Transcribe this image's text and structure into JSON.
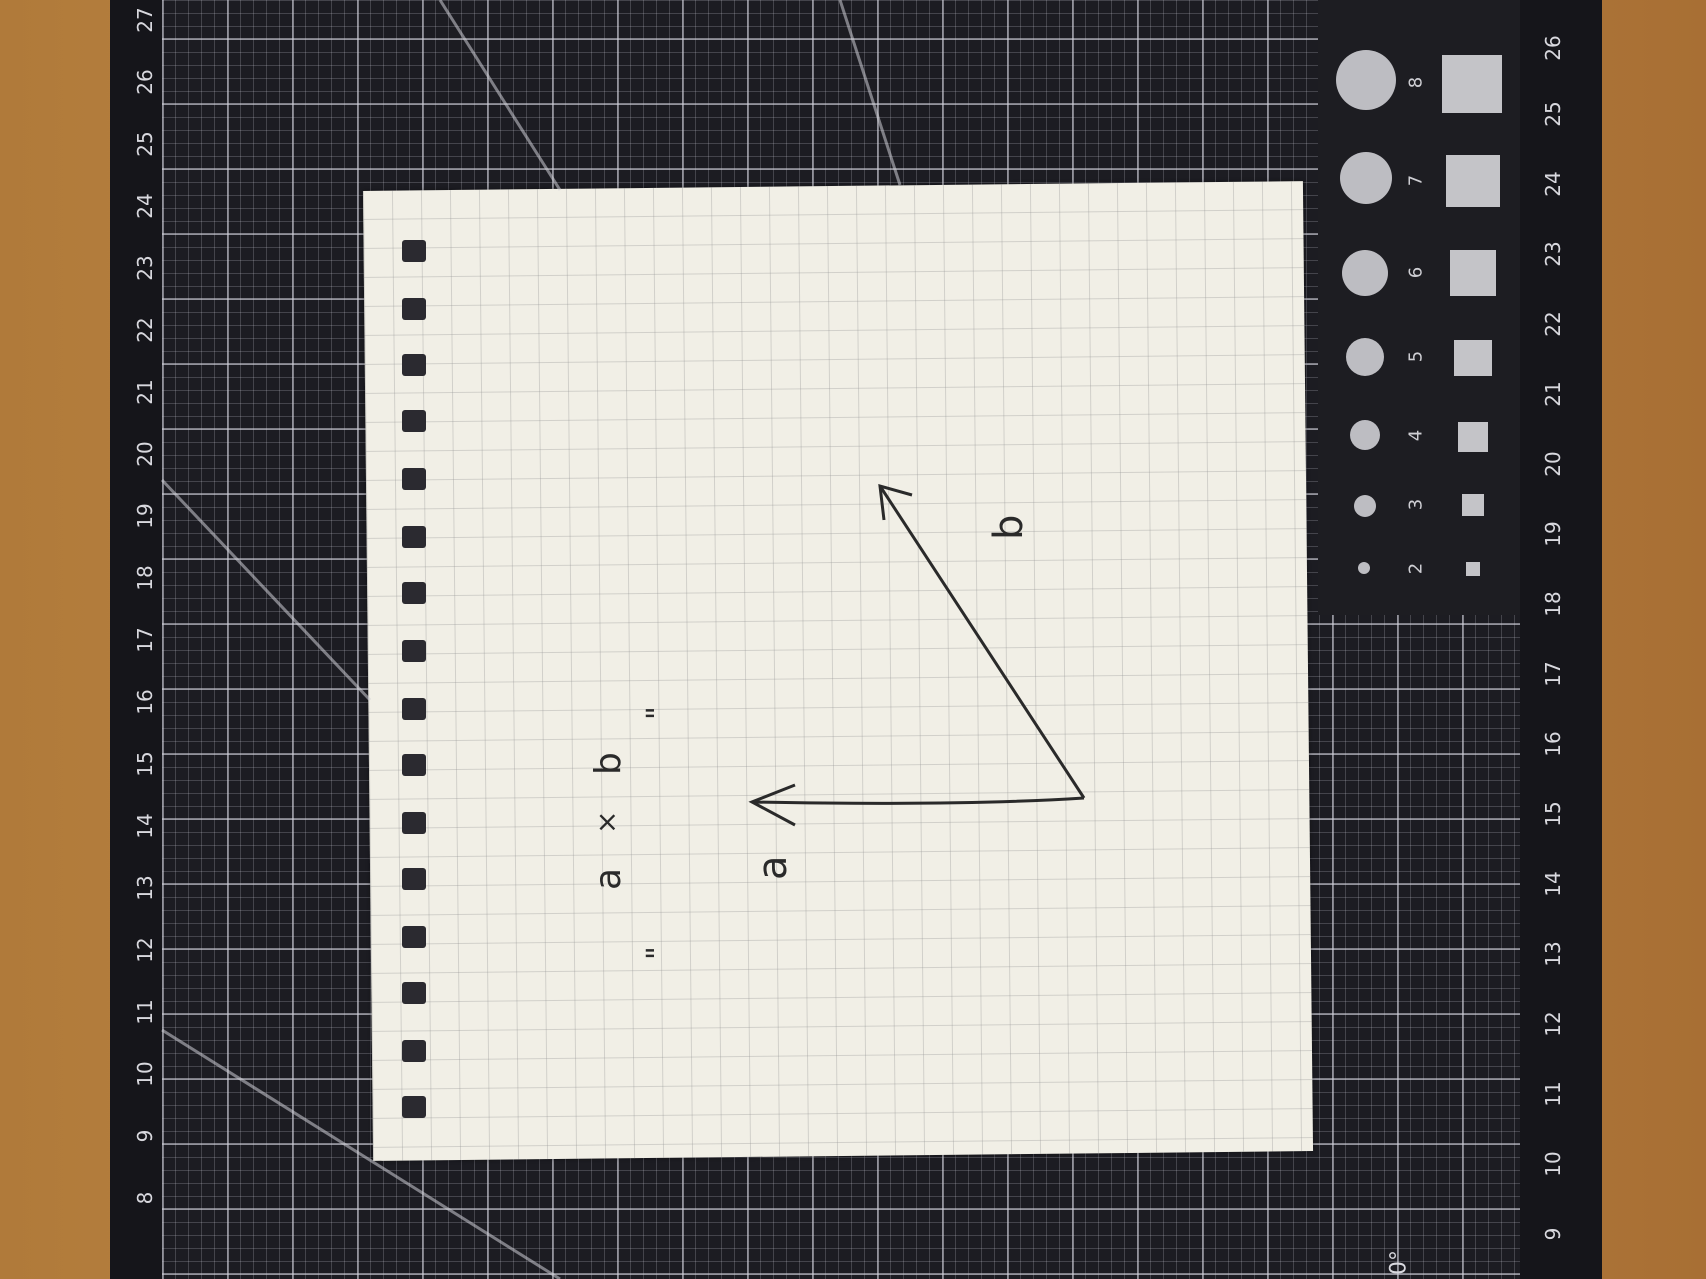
{
  "photo": {
    "ruler_left_numbers": [
      "27",
      "26",
      "25",
      "24",
      "23",
      "22",
      "21",
      "20",
      "19",
      "18",
      "17",
      "16",
      "15",
      "14",
      "13",
      "12",
      "11",
      "10",
      "9",
      "8"
    ],
    "ruler_right_numbers": [
      "26",
      "25",
      "24",
      "23",
      "22",
      "21",
      "20",
      "19",
      "18",
      "17",
      "16",
      "15",
      "14",
      "13",
      "12",
      "11",
      "10",
      "9"
    ],
    "template_sizes": [
      "8",
      "7",
      "6",
      "5",
      "4",
      "3",
      "2"
    ],
    "corner_label": "0°"
  },
  "notebook": {
    "formula": "a × b",
    "formula_a": "a",
    "formula_times": "×",
    "formula_b": "b",
    "note_left": "\"",
    "note_right": "\"",
    "vector_a_label": "a",
    "vector_b_label": "b"
  },
  "colors": {
    "mat": "#1c1c22",
    "paper": "#f1efe6",
    "ink": "#2a2a2a",
    "desk": "#b07a3a"
  }
}
